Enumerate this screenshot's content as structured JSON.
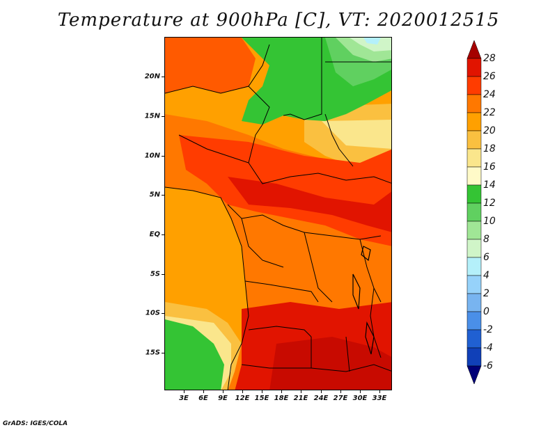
{
  "map": {
    "title": "Temperature at 900hPa [C], VT: 2020012515",
    "credit": "GrADS: IGES/COLA",
    "lat_ticks": [
      "20N",
      "15N",
      "10N",
      "5N",
      "EQ",
      "5S",
      "10S",
      "15S"
    ],
    "lat_values": [
      20,
      15,
      10,
      5,
      0,
      -5,
      -10,
      -15
    ],
    "lon_ticks": [
      "3E",
      "6E",
      "9E",
      "12E",
      "15E",
      "18E",
      "21E",
      "24E",
      "27E",
      "30E",
      "33E"
    ],
    "lon_values": [
      3,
      6,
      9,
      12,
      15,
      18,
      21,
      24,
      27,
      30,
      33
    ],
    "lat_range": [
      -20,
      25
    ],
    "lon_range": [
      0,
      35
    ],
    "variable_units": "C"
  },
  "colorbar": {
    "levels": [
      "28",
      "26",
      "24",
      "22",
      "20",
      "18",
      "16",
      "14",
      "12",
      "10",
      "8",
      "6",
      "4",
      "2",
      "0",
      "-2",
      "-4",
      "-6"
    ],
    "colors": [
      "#a50000",
      "#e11400",
      "#ff3c00",
      "#ff7800",
      "#ffa000",
      "#fac040",
      "#fae68c",
      "#fffac8",
      "#34c434",
      "#60d060",
      "#a0e696",
      "#d0f5c8",
      "#b4f0fa",
      "#96d2fa",
      "#78b4f0",
      "#4a8fe8",
      "#2060d2",
      "#1040b8",
      "#000078"
    ]
  }
}
